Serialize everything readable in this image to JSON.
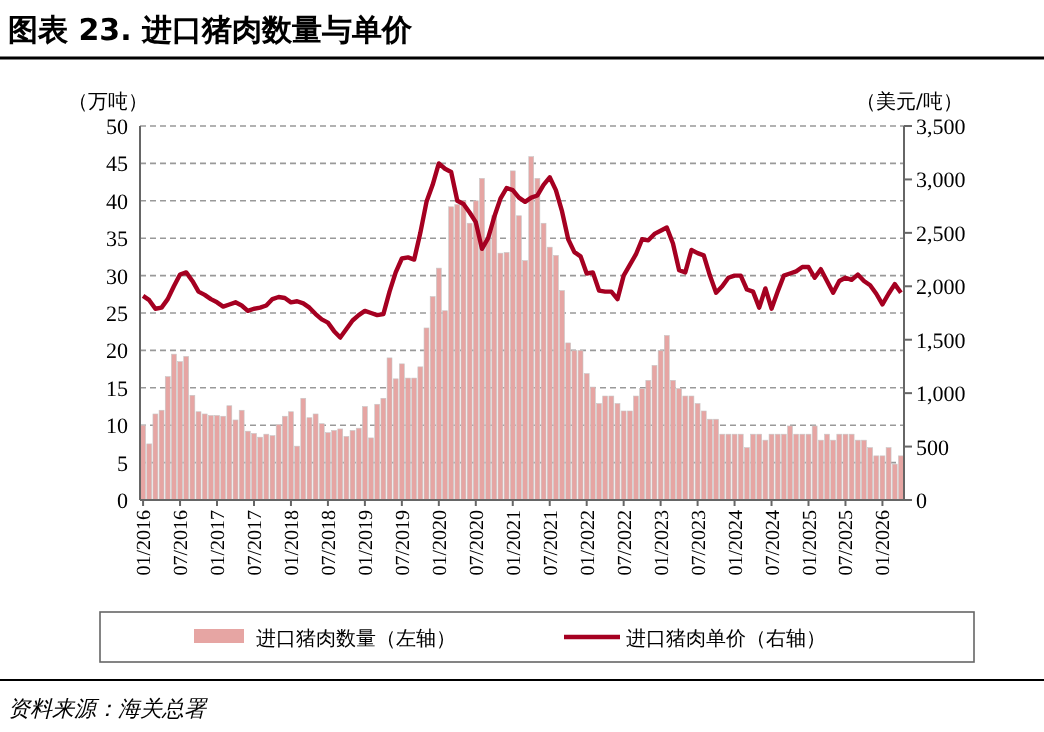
{
  "chart_data": {
    "type": "bar",
    "title": "图表 23. 进口猪肉数量与单价",
    "ylabel": "（万吨）",
    "y2label": "（美元/吨）",
    "annotations": [
      "资料来源：海关总署"
    ],
    "categories": [
      "01/2016",
      null,
      null,
      null,
      null,
      null,
      "07/2016",
      null,
      null,
      null,
      null,
      null,
      "01/2017",
      null,
      null,
      null,
      null,
      null,
      "07/2017",
      null,
      null,
      null,
      null,
      null,
      "01/2018",
      null,
      null,
      null,
      null,
      null,
      "07/2018",
      null,
      null,
      null,
      null,
      null,
      "01/2019",
      null,
      null,
      null,
      null,
      null,
      "07/2019",
      null,
      null,
      null,
      null,
      null,
      "01/2020",
      null,
      null,
      null,
      null,
      null,
      "07/2020",
      null,
      null,
      null,
      null,
      null,
      "01/2021",
      null,
      null,
      null,
      null,
      null,
      "07/2021",
      null,
      null,
      null,
      null,
      null,
      "01/2022",
      null,
      null,
      null,
      null,
      null,
      "07/2022",
      null,
      null,
      null,
      null,
      null,
      "01/2023",
      null,
      null,
      null,
      null,
      null,
      "07/2023",
      null,
      null,
      null,
      null,
      null,
      "01/2024",
      null,
      null,
      null,
      null,
      null,
      "07/2024",
      null,
      null,
      null,
      null,
      null,
      "01/2025",
      null,
      null,
      null,
      null,
      null,
      "07/2025",
      null,
      null,
      null,
      null,
      null,
      "01/2026",
      null,
      null,
      null
    ],
    "series": [
      {
        "name": "进口猪肉数量（左轴）",
        "color": "#e6a5a3",
        "values": [
          10,
          7.5,
          11.5,
          12,
          16.5,
          19.5,
          18.5,
          19.2,
          14,
          11.8,
          11.5,
          11.3,
          11.3,
          11.2,
          12.6,
          10.7,
          12,
          9.2,
          8.9,
          8.4,
          8.8,
          8.6,
          10.1,
          11.2,
          11.8,
          7.2,
          13.6,
          11,
          11.5,
          10.2,
          9,
          9.3,
          9.5,
          8.5,
          9.3,
          9.6,
          12.5,
          8.3,
          12.8,
          13.6,
          19,
          16.2,
          18.2,
          16.3,
          16.3,
          17.8,
          23,
          27.2,
          31,
          25.3,
          39.2,
          39.5,
          40,
          37,
          40,
          43,
          35,
          38,
          33,
          33.1,
          44,
          38,
          32,
          45.9,
          43,
          37,
          33.8,
          32.7,
          28,
          21,
          20,
          20,
          16.9,
          15.1,
          12.9,
          13.9,
          13.9,
          12.9,
          11.9,
          11.9,
          13.9,
          14.9,
          16,
          18,
          20,
          22,
          16,
          14.9,
          13.9,
          13.9,
          12.9,
          11.9,
          10.8,
          10.8,
          8.8,
          8.8,
          8.8,
          8.8,
          7,
          8.8,
          8.8,
          8,
          8.8,
          8.8,
          8.8,
          9.9,
          8.8,
          8.8,
          8.8,
          9.9,
          8,
          8.8,
          8,
          8.8,
          8.8,
          8.8,
          8,
          8,
          7,
          5.9,
          5.9,
          7,
          4.8,
          5.9
        ]
      },
      {
        "name": "进口猪肉单价（右轴）",
        "type": "line",
        "axis": "y2",
        "color": "#a50021",
        "values": [
          1910,
          1870,
          1790,
          1800,
          1880,
          2000,
          2110,
          2130,
          2050,
          1950,
          1920,
          1880,
          1850,
          1810,
          1830,
          1850,
          1820,
          1770,
          1790,
          1800,
          1820,
          1880,
          1900,
          1890,
          1850,
          1860,
          1840,
          1800,
          1740,
          1690,
          1660,
          1580,
          1520,
          1600,
          1680,
          1730,
          1770,
          1750,
          1730,
          1740,
          1950,
          2130,
          2260,
          2270,
          2250,
          2500,
          2790,
          2950,
          3150,
          3100,
          3070,
          2800,
          2770,
          2690,
          2600,
          2350,
          2450,
          2650,
          2820,
          2920,
          2900,
          2830,
          2790,
          2830,
          2850,
          2950,
          3020,
          2900,
          2700,
          2440,
          2320,
          2280,
          2120,
          2130,
          1960,
          1950,
          1950,
          1880,
          2100,
          2200,
          2300,
          2440,
          2430,
          2490,
          2520,
          2550,
          2400,
          2150,
          2130,
          2340,
          2310,
          2290,
          2100,
          1940,
          2000,
          2080,
          2100,
          2100,
          1970,
          1950,
          1800,
          1980,
          1790,
          1950,
          2100,
          2120,
          2140,
          2180,
          2180,
          2080,
          2160,
          2050,
          1940,
          2050,
          2080,
          2060,
          2110,
          2050,
          2010,
          1930,
          1830,
          1930,
          2020,
          1940
        ]
      }
    ],
    "ylim": [
      0,
      50
    ],
    "yticks": [
      0,
      5,
      10,
      15,
      20,
      25,
      30,
      35,
      40,
      45,
      50
    ],
    "y2lim": [
      0,
      3500
    ],
    "y2ticks": [
      0,
      {
        "value": 500,
        "label": "500"
      },
      {
        "value": 1000,
        "label": "1,000"
      },
      {
        "value": 1500,
        "label": "1,500"
      },
      {
        "value": 2000,
        "label": "2,000"
      },
      {
        "value": 2500,
        "label": "2,500"
      },
      {
        "value": 3000,
        "label": "3,000"
      },
      {
        "value": 3500,
        "label": "3,500"
      }
    ],
    "grid": "y",
    "legend": "bottom"
  }
}
